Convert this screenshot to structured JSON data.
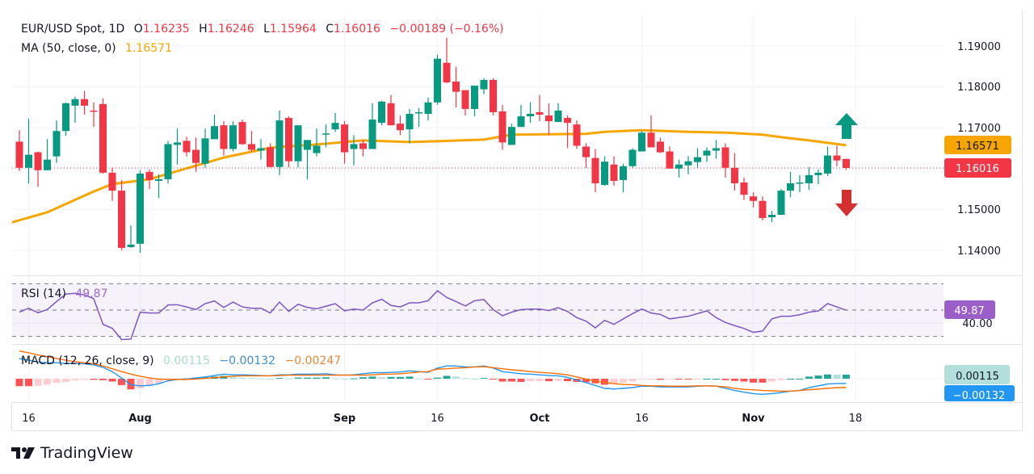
{
  "header": {
    "symbol": "EUR/USD Spot, 1D",
    "ohlc": [
      {
        "label": "O",
        "value": "1.16235"
      },
      {
        "label": "H",
        "value": "1.16246"
      },
      {
        "label": "L",
        "value": "1.15964"
      },
      {
        "label": "C",
        "value": "1.16016"
      }
    ],
    "change": "−0.00189 (−0.16%)",
    "ma_label": "MA (50, close, 0)",
    "ma_value": "1.16571"
  },
  "rsi_legend": {
    "label": "RSI (14)",
    "value": "49.87"
  },
  "macd_legend": {
    "label": "MACD (12, 26, close, 9)",
    "hist": "0.00115",
    "macd": "−0.00132",
    "signal": "−0.00247"
  },
  "axis_labels": {
    "price_ticks": [
      "1.19000",
      "1.18000",
      "1.17000",
      "1.15000",
      "1.14000"
    ],
    "rsi_tick": "40.00",
    "price_badge_ma": "1.16571",
    "price_badge_last": "1.16016",
    "rsi_badge": "49.87",
    "macd_badge_hist": "0.00115",
    "macd_badge_macd": "−0.00132"
  },
  "time_ticks": [
    {
      "label": "16",
      "date": "2024-07-16",
      "bold": false
    },
    {
      "label": "Aug",
      "date": "2024-08-01",
      "bold": true
    },
    {
      "label": "Sep",
      "date": "2024-09-02",
      "bold": true
    },
    {
      "label": "16",
      "date": "2024-09-16",
      "bold": false
    },
    {
      "label": "Oct",
      "date": "2024-10-01",
      "bold": true
    },
    {
      "label": "16",
      "date": "2024-10-16",
      "bold": false
    },
    {
      "label": "Nov",
      "date": "2024-11-01",
      "bold": true
    },
    {
      "label": "18",
      "date": "2024-11-18",
      "bold": false
    }
  ],
  "branding": {
    "name": "TradingView"
  },
  "colors": {
    "up": "#089981",
    "down": "#F23645",
    "ma": "#F7A600",
    "rsi": "#7E57C2",
    "macd": "#2196F3",
    "signal": "#FF6D00",
    "hist_up_strong": "#26A69A",
    "hist_up_weak": "#B2DFDB",
    "hist_down_strong": "#FF5252",
    "hist_down_weak": "#FFCDD2",
    "arrow_up": "#089981",
    "arrow_down": "#D32F2F"
  },
  "icons": {
    "trend_up": "arrow-up-icon",
    "trend_down": "arrow-down-icon",
    "logo": "tradingview-logo-icon"
  },
  "chart_data": {
    "type": "candlestick",
    "ylim": [
      1.135,
      1.195
    ],
    "grid": true,
    "columns": [
      "date",
      "open",
      "high",
      "low",
      "close"
    ],
    "candles": [
      [
        "2024-07-15",
        1.1666,
        1.1694,
        1.1594,
        1.1602
      ],
      [
        "2024-07-16",
        1.1602,
        1.1722,
        1.1564,
        1.1634
      ],
      [
        "2024-07-17",
        1.164,
        1.1642,
        1.1556,
        1.1596
      ],
      [
        "2024-07-18",
        1.1596,
        1.1672,
        1.1596,
        1.1622
      ],
      [
        "2024-07-19",
        1.163,
        1.1718,
        1.1614,
        1.1692
      ],
      [
        "2024-07-22",
        1.1692,
        1.1762,
        1.168,
        1.176
      ],
      [
        "2024-07-23",
        1.1754,
        1.1776,
        1.1712,
        1.177
      ],
      [
        "2024-07-24",
        1.177,
        1.179,
        1.1732,
        1.1754
      ],
      [
        "2024-07-25",
        1.1742,
        1.1762,
        1.1702,
        1.174
      ],
      [
        "2024-07-26",
        1.1758,
        1.1772,
        1.1588,
        1.159
      ],
      [
        "2024-07-29",
        1.159,
        1.1602,
        1.1521,
        1.1546
      ],
      [
        "2024-07-30",
        1.1546,
        1.1572,
        1.14,
        1.1406
      ],
      [
        "2024-07-31",
        1.1408,
        1.1461,
        1.1406,
        1.1414
      ],
      [
        "2024-08-01",
        1.1416,
        1.1596,
        1.1394,
        1.1588
      ],
      [
        "2024-08-02",
        1.1592,
        1.1598,
        1.155,
        1.1572
      ],
      [
        "2024-08-05",
        1.157,
        1.1586,
        1.1528,
        1.1574
      ],
      [
        "2024-08-06",
        1.1574,
        1.1668,
        1.1564,
        1.166
      ],
      [
        "2024-08-07",
        1.1658,
        1.1698,
        1.161,
        1.1664
      ],
      [
        "2024-08-08",
        1.1668,
        1.1678,
        1.163,
        1.164
      ],
      [
        "2024-08-09",
        1.1646,
        1.1676,
        1.1592,
        1.1614
      ],
      [
        "2024-08-12",
        1.1612,
        1.1698,
        1.1602,
        1.1674
      ],
      [
        "2024-08-13",
        1.1672,
        1.1732,
        1.1672,
        1.1704
      ],
      [
        "2024-08-14",
        1.1706,
        1.1716,
        1.1632,
        1.1648
      ],
      [
        "2024-08-15",
        1.1648,
        1.1716,
        1.1642,
        1.1706
      ],
      [
        "2024-08-16",
        1.1714,
        1.172,
        1.1658,
        1.166
      ],
      [
        "2024-08-19",
        1.166,
        1.1692,
        1.1642,
        1.1646
      ],
      [
        "2024-08-20",
        1.1644,
        1.1672,
        1.1622,
        1.165
      ],
      [
        "2024-08-21",
        1.1652,
        1.1662,
        1.1603,
        1.1604
      ],
      [
        "2024-08-22",
        1.1604,
        1.1742,
        1.1584,
        1.1718
      ],
      [
        "2024-08-23",
        1.1724,
        1.1728,
        1.1603,
        1.1618
      ],
      [
        "2024-08-26",
        1.1618,
        1.1706,
        1.1603,
        1.1706
      ],
      [
        "2024-08-27",
        1.1646,
        1.167,
        1.1574,
        1.167
      ],
      [
        "2024-08-28",
        1.1638,
        1.1698,
        1.163,
        1.1656
      ],
      [
        "2024-08-29",
        1.1684,
        1.1708,
        1.1652,
        1.1686
      ],
      [
        "2024-08-30",
        1.1696,
        1.1736,
        1.169,
        1.1712
      ],
      [
        "2024-09-02",
        1.1708,
        1.1716,
        1.1612,
        1.164
      ],
      [
        "2024-09-03",
        1.1648,
        1.1682,
        1.1608,
        1.166
      ],
      [
        "2024-09-04",
        1.1662,
        1.167,
        1.163,
        1.1648
      ],
      [
        "2024-09-05",
        1.1648,
        1.176,
        1.1648,
        1.172
      ],
      [
        "2024-09-06",
        1.1712,
        1.1766,
        1.1706,
        1.1764
      ],
      [
        "2024-09-09",
        1.176,
        1.178,
        1.1706,
        1.1706
      ],
      [
        "2024-09-10",
        1.171,
        1.173,
        1.1682,
        1.1694
      ],
      [
        "2024-09-11",
        1.1696,
        1.1746,
        1.1662,
        1.1734
      ],
      [
        "2024-09-12",
        1.1736,
        1.1748,
        1.1702,
        1.1738
      ],
      [
        "2024-09-13",
        1.1734,
        1.1774,
        1.1718,
        1.1762
      ],
      [
        "2024-09-16",
        1.1762,
        1.1879,
        1.1756,
        1.1869
      ],
      [
        "2024-09-17",
        1.1859,
        1.192,
        1.1809,
        1.1811
      ],
      [
        "2024-09-18",
        1.1813,
        1.1849,
        1.175,
        1.1788
      ],
      [
        "2024-09-19",
        1.1792,
        1.1792,
        1.173,
        1.1746
      ],
      [
        "2024-09-20",
        1.1746,
        1.1803,
        1.1728,
        1.1803
      ],
      [
        "2024-09-23",
        1.1794,
        1.1821,
        1.1782,
        1.1817
      ],
      [
        "2024-09-24",
        1.1817,
        1.1821,
        1.173,
        1.1738
      ],
      [
        "2024-09-25",
        1.174,
        1.1756,
        1.1646,
        1.1664
      ],
      [
        "2024-09-26",
        1.1658,
        1.171,
        1.1658,
        1.1702
      ],
      [
        "2024-09-27",
        1.1702,
        1.1756,
        1.1702,
        1.1728
      ],
      [
        "2024-09-30",
        1.1728,
        1.1762,
        1.1712,
        1.1734
      ],
      [
        "2024-10-01",
        1.1738,
        1.178,
        1.1716,
        1.1732
      ],
      [
        "2024-10-02",
        1.173,
        1.176,
        1.1682,
        1.1716
      ],
      [
        "2024-10-03",
        1.1714,
        1.176,
        1.1714,
        1.1742
      ],
      [
        "2024-10-04",
        1.1724,
        1.173,
        1.165,
        1.1712
      ],
      [
        "2024-10-07",
        1.1708,
        1.1718,
        1.1648,
        1.1656
      ],
      [
        "2024-10-08",
        1.1654,
        1.1662,
        1.1602,
        1.1628
      ],
      [
        "2024-10-09",
        1.1626,
        1.1648,
        1.1542,
        1.1564
      ],
      [
        "2024-10-10",
        1.156,
        1.163,
        1.1558,
        1.1617
      ],
      [
        "2024-10-11",
        1.161,
        1.163,
        1.1558,
        1.157
      ],
      [
        "2024-10-14",
        1.1572,
        1.1612,
        1.1542,
        1.1606
      ],
      [
        "2024-10-15",
        1.1606,
        1.165,
        1.1602,
        1.1646
      ],
      [
        "2024-10-16",
        1.1642,
        1.1692,
        1.1642,
        1.1688
      ],
      [
        "2024-10-17",
        1.1688,
        1.173,
        1.1652,
        1.1652
      ],
      [
        "2024-10-18",
        1.1666,
        1.1676,
        1.1638,
        1.164
      ],
      [
        "2024-10-21",
        1.1642,
        1.1654,
        1.16,
        1.16
      ],
      [
        "2024-10-22",
        1.16,
        1.1622,
        1.1578,
        1.161
      ],
      [
        "2024-10-23",
        1.1608,
        1.163,
        1.1586,
        1.1618
      ],
      [
        "2024-10-24",
        1.1616,
        1.165,
        1.1602,
        1.1628
      ],
      [
        "2024-10-25",
        1.1632,
        1.1652,
        1.1616,
        1.1644
      ],
      [
        "2024-10-28",
        1.1644,
        1.167,
        1.1624,
        1.165
      ],
      [
        "2024-10-29",
        1.1652,
        1.1662,
        1.1578,
        1.1602
      ],
      [
        "2024-10-30",
        1.1602,
        1.1638,
        1.1546,
        1.1564
      ],
      [
        "2024-10-31",
        1.1566,
        1.1578,
        1.1523,
        1.1536
      ],
      [
        "2024-11-01",
        1.1532,
        1.1542,
        1.1505,
        1.1521
      ],
      [
        "2024-11-04",
        1.1521,
        1.1532,
        1.1473,
        1.1479
      ],
      [
        "2024-11-05",
        1.1481,
        1.1497,
        1.1469,
        1.1487
      ],
      [
        "2024-11-06",
        1.1487,
        1.155,
        1.1487,
        1.1546
      ],
      [
        "2024-11-07",
        1.1546,
        1.1592,
        1.153,
        1.1564
      ],
      [
        "2024-11-08",
        1.1564,
        1.1584,
        1.1542,
        1.1566
      ],
      [
        "2024-11-11",
        1.1564,
        1.1604,
        1.1548,
        1.1584
      ],
      [
        "2024-11-12",
        1.1584,
        1.1598,
        1.1562,
        1.159
      ],
      [
        "2024-11-13",
        1.1588,
        1.1654,
        1.1582,
        1.1632
      ],
      [
        "2024-11-14",
        1.1632,
        1.1656,
        1.1606,
        1.162
      ],
      [
        "2024-11-15",
        1.16235,
        1.16246,
        1.15964,
        1.16016
      ]
    ],
    "ma50": [
      [
        "2024-07-15",
        1.1468
      ],
      [
        "2024-07-18",
        1.1493
      ],
      [
        "2024-07-25",
        1.1544
      ],
      [
        "2024-07-29",
        1.1562
      ],
      [
        "2024-08-02",
        1.1574
      ],
      [
        "2024-08-14",
        1.1627
      ],
      [
        "2024-08-21",
        1.1651
      ],
      [
        "2024-08-29",
        1.1661
      ],
      [
        "2024-09-04",
        1.1669
      ],
      [
        "2024-09-11",
        1.1665
      ],
      [
        "2024-09-16",
        1.1667
      ],
      [
        "2024-09-23",
        1.1671
      ],
      [
        "2024-09-26",
        1.1683
      ],
      [
        "2024-10-08",
        1.1685
      ],
      [
        "2024-10-10",
        1.169
      ],
      [
        "2024-10-16",
        1.1694
      ],
      [
        "2024-10-23",
        1.169
      ],
      [
        "2024-10-29",
        1.1688
      ],
      [
        "2024-11-04",
        1.1683
      ],
      [
        "2024-11-06",
        1.1677
      ],
      [
        "2024-11-11",
        1.1669
      ],
      [
        "2024-11-15",
        1.16571
      ]
    ],
    "rsi": {
      "ylim": [
        30,
        70
      ],
      "bands": [
        70,
        50,
        30
      ],
      "values": [
        48.4,
        51.4,
        48.0,
        50.4,
        56.5,
        62.2,
        62.7,
        61.6,
        58.6,
        39.2,
        36.1,
        27.6,
        28.0,
        48.4,
        47.8,
        47.8,
        53.9,
        54.1,
        52.4,
        50.4,
        54.9,
        56.9,
        52.0,
        56.1,
        52.4,
        51.4,
        51.4,
        47.8,
        56.1,
        49.0,
        54.5,
        52.0,
        51.0,
        52.9,
        54.9,
        49.4,
        50.8,
        50.0,
        55.5,
        58.2,
        53.5,
        52.4,
        55.5,
        55.5,
        57.1,
        64.7,
        59.6,
        56.5,
        53.1,
        57.1,
        58.0,
        50.4,
        45.7,
        48.4,
        50.4,
        50.8,
        50.8,
        49.6,
        51.8,
        49.0,
        44.3,
        41.6,
        36.5,
        42.2,
        39.2,
        43.3,
        47.3,
        50.8,
        47.8,
        46.7,
        43.3,
        44.3,
        45.3,
        47.3,
        49.4,
        44.3,
        40.6,
        38.2,
        36.1,
        33.1,
        34.1,
        43.3,
        45.3,
        45.3,
        46.5,
        48.4,
        49.4,
        54.9,
        52.4,
        49.87
      ]
    },
    "macd": {
      "macd": [
        0.0057,
        0.0052,
        0.0047,
        0.0045,
        0.0045,
        0.0043,
        0.0043,
        0.0042,
        0.0039,
        0.0032,
        0.002,
        0.0002,
        -0.0017,
        -0.002,
        -0.0019,
        -0.0014,
        -0.0006,
        -0.0002,
        -0.0001,
        0.0002,
        0.0005,
        0.0009,
        0.0013,
        0.0011,
        0.0011,
        0.001,
        0.0009,
        0.0008,
        0.0011,
        0.0011,
        0.0013,
        0.0013,
        0.0013,
        0.0014,
        0.0011,
        0.001,
        0.0011,
        0.0014,
        0.0017,
        0.0017,
        0.0018,
        0.0019,
        0.0022,
        0.002,
        0.0018,
        0.003,
        0.0036,
        0.0036,
        0.0033,
        0.0033,
        0.0036,
        0.003,
        0.002,
        0.0017,
        0.0014,
        0.0013,
        0.0011,
        0.0009,
        0.0008,
        0.0004,
        -0.0004,
        -0.0011,
        -0.0019,
        -0.0027,
        -0.0029,
        -0.0027,
        -0.0025,
        -0.0021,
        -0.0021,
        -0.0023,
        -0.0023,
        -0.0023,
        -0.0023,
        -0.0021,
        -0.002,
        -0.0021,
        -0.0027,
        -0.0033,
        -0.0038,
        -0.0042,
        -0.0044,
        -0.0042,
        -0.0039,
        -0.0035,
        -0.0033,
        -0.0025,
        -0.002,
        -0.0015,
        -0.00136,
        -0.00132
      ],
      "signal": [
        0.0078,
        0.0073,
        0.0067,
        0.0062,
        0.0057,
        0.0052,
        0.0048,
        0.0045,
        0.0042,
        0.0036,
        0.0028,
        0.002,
        0.0013,
        0.0007,
        0.0002,
        -0.0001,
        -0.0002,
        -0.0002,
        -0.0002,
        -0.0001,
        0.0001,
        0.0003,
        0.0005,
        0.0007,
        0.0008,
        0.0008,
        0.0008,
        0.0008,
        0.0009,
        0.001,
        0.001,
        0.001,
        0.001,
        0.001,
        0.001,
        0.001,
        0.001,
        0.001,
        0.0011,
        0.0013,
        0.0013,
        0.0014,
        0.0016,
        0.0019,
        0.002,
        0.0027,
        0.0028,
        0.003,
        0.0031,
        0.0033,
        0.0034,
        0.0031,
        0.0028,
        0.0025,
        0.0023,
        0.002,
        0.0018,
        0.0016,
        0.0014,
        0.0011,
        0.0005,
        -0.0001,
        -0.0006,
        -0.001,
        -0.0014,
        -0.0016,
        -0.0017,
        -0.0019,
        -0.002,
        -0.002,
        -0.0021,
        -0.0021,
        -0.0021,
        -0.002,
        -0.002,
        -0.0021,
        -0.0023,
        -0.0027,
        -0.003,
        -0.0031,
        -0.0033,
        -0.0034,
        -0.0035,
        -0.0035,
        -0.0033,
        -0.0031,
        -0.0029,
        -0.0027,
        -0.0025,
        -0.00247
      ]
    }
  }
}
